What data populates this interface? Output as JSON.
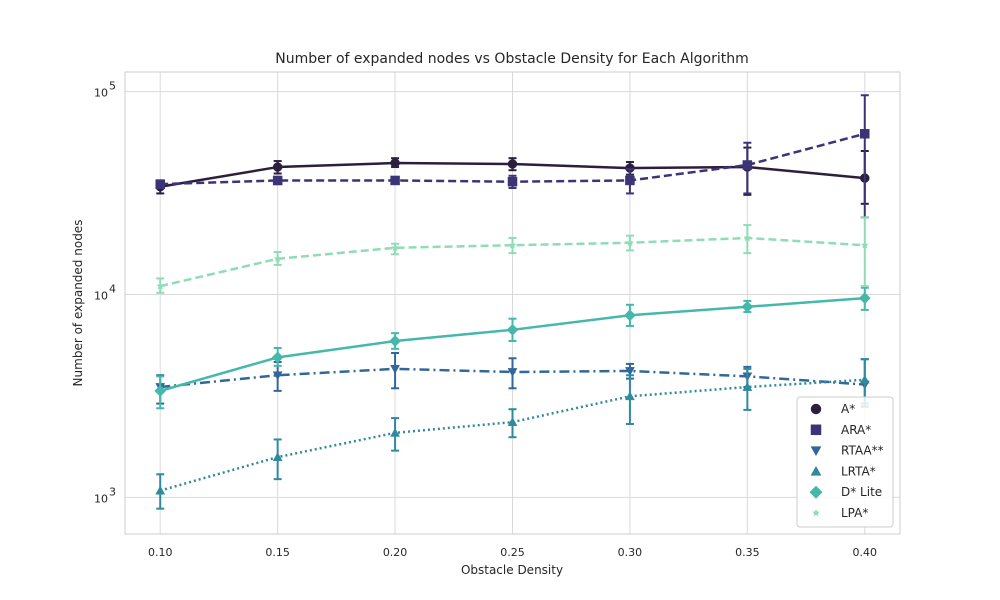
{
  "chart_data": {
    "type": "line",
    "title": "Number of expanded nodes vs Obstacle Density for Each Algorithm",
    "xlabel": "Obstacle Density",
    "ylabel": "Number of expanded nodes",
    "x": [
      0.1,
      0.15,
      0.2,
      0.25,
      0.3,
      0.35,
      0.4
    ],
    "x_tick_labels": [
      "0.10",
      "0.15",
      "0.20",
      "0.25",
      "0.30",
      "0.35",
      "0.40"
    ],
    "xlim": [
      0.085,
      0.415
    ],
    "ylim": [
      660,
      125000
    ],
    "yscale": "log",
    "y_ticks": [
      {
        "value": 1000,
        "base": "10",
        "exp": "3"
      },
      {
        "value": 10000,
        "base": "10",
        "exp": "4"
      },
      {
        "value": 100000,
        "base": "10",
        "exp": "5"
      }
    ],
    "grid": true,
    "legend_position": "lower right",
    "series": [
      {
        "name": "A*",
        "color": "#2c1e3d",
        "linestyle": "solid",
        "marker": "circle",
        "values": [
          34000,
          42500,
          44500,
          44000,
          42000,
          42500,
          37500
        ],
        "err_low": [
          31500,
          39500,
          42500,
          41000,
          39000,
          31000,
          28000
        ],
        "err_high": [
          36500,
          45500,
          47000,
          47000,
          45000,
          53000,
          51000
        ]
      },
      {
        "name": "ARA*",
        "color": "#3b3477",
        "linestyle": "dashed",
        "marker": "square",
        "values": [
          35000,
          36500,
          36500,
          36000,
          36500,
          43500,
          62000
        ],
        "err_low": [
          33500,
          35000,
          35500,
          33500,
          31500,
          31500,
          24000
        ],
        "err_high": [
          36500,
          37500,
          37500,
          38500,
          41500,
          56000,
          96000
        ]
      },
      {
        "name": "RTAA**",
        "color": "#32679a",
        "linestyle": "dashdot",
        "marker": "triangle-down",
        "values": [
          3500,
          4000,
          4300,
          4150,
          4200,
          3950,
          3600
        ],
        "err_low": [
          2900,
          3350,
          3450,
          3450,
          3850,
          3500,
          2800
        ],
        "err_high": [
          4000,
          4650,
          5150,
          4850,
          4550,
          4400,
          4800
        ]
      },
      {
        "name": "LRTA*",
        "color": "#2f8a9e",
        "linestyle": "dotted",
        "marker": "triangle-up",
        "values": [
          1080,
          1580,
          2080,
          2350,
          3150,
          3500,
          3800
        ],
        "err_low": [
          880,
          1230,
          1700,
          1980,
          2300,
          2700,
          2900
        ],
        "err_high": [
          1300,
          1930,
          2460,
          2720,
          4000,
          4300,
          4800
        ]
      },
      {
        "name": "D* Lite",
        "color": "#45b8ac",
        "linestyle": "solid",
        "marker": "diamond",
        "values": [
          3350,
          4900,
          5900,
          6700,
          7900,
          8700,
          9600
        ],
        "err_low": [
          2750,
          4450,
          5400,
          5900,
          7000,
          8200,
          8400
        ],
        "err_high": [
          3950,
          5450,
          6450,
          7600,
          8900,
          9300,
          10800
        ]
      },
      {
        "name": "LPA*",
        "color": "#8fdcb6",
        "linestyle": "dashed",
        "marker": "star",
        "values": [
          11000,
          15000,
          17000,
          17500,
          18000,
          19000,
          17500
        ],
        "err_low": [
          10200,
          14000,
          15800,
          16000,
          16500,
          16000,
          11000
        ],
        "err_high": [
          12000,
          16200,
          17800,
          19000,
          19500,
          22000,
          24000
        ]
      }
    ]
  }
}
